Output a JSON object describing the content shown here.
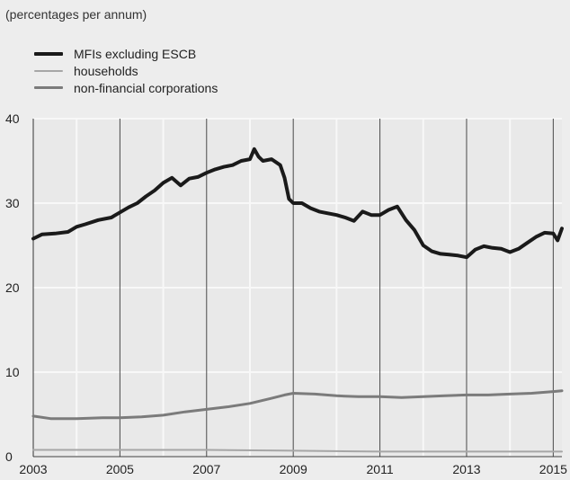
{
  "chart_data": {
    "type": "line",
    "subtitle": "(percentages per annum)",
    "title": "",
    "xlabel": "",
    "ylabel": "",
    "xlim": [
      2003.0,
      2015.2
    ],
    "ylim": [
      0,
      40
    ],
    "x_ticks": [
      "2003",
      "2005",
      "2007",
      "2009",
      "2011",
      "2013",
      "2015"
    ],
    "y_ticks": [
      "0",
      "10",
      "20",
      "30",
      "40"
    ],
    "grid": true,
    "legend_position": "top-left",
    "series": [
      {
        "name": "MFIs excluding ESCB",
        "color": "#1a1a1a",
        "x": [
          2003.0,
          2003.2,
          2003.5,
          2003.8,
          2004.0,
          2004.2,
          2004.5,
          2004.8,
          2005.0,
          2005.2,
          2005.4,
          2005.6,
          2005.8,
          2006.0,
          2006.2,
          2006.4,
          2006.6,
          2006.8,
          2007.0,
          2007.2,
          2007.4,
          2007.6,
          2007.8,
          2008.0,
          2008.1,
          2008.2,
          2008.3,
          2008.5,
          2008.7,
          2008.8,
          2008.9,
          2009.0,
          2009.2,
          2009.4,
          2009.6,
          2009.8,
          2010.0,
          2010.2,
          2010.4,
          2010.6,
          2010.8,
          2011.0,
          2011.2,
          2011.4,
          2011.6,
          2011.8,
          2012.0,
          2012.2,
          2012.4,
          2012.6,
          2012.8,
          2013.0,
          2013.2,
          2013.4,
          2013.6,
          2013.8,
          2014.0,
          2014.2,
          2014.4,
          2014.6,
          2014.8,
          2015.0,
          2015.1,
          2015.2
        ],
        "y": [
          25.8,
          26.3,
          26.4,
          26.6,
          27.2,
          27.5,
          28.0,
          28.3,
          28.9,
          29.5,
          30.0,
          30.8,
          31.5,
          32.4,
          33.0,
          32.1,
          32.9,
          33.1,
          33.6,
          34.0,
          34.3,
          34.5,
          35.0,
          35.2,
          36.4,
          35.5,
          35.0,
          35.2,
          34.5,
          33.0,
          30.5,
          30.0,
          30.0,
          29.4,
          29.0,
          28.8,
          28.6,
          28.3,
          27.9,
          29.0,
          28.6,
          28.6,
          29.2,
          29.6,
          28.0,
          26.8,
          25.0,
          24.3,
          24.0,
          23.9,
          23.8,
          23.6,
          24.5,
          24.9,
          24.7,
          24.6,
          24.2,
          24.6,
          25.3,
          26.0,
          26.5,
          26.4,
          25.6,
          27.0
        ]
      },
      {
        "name": "households",
        "color": "#a6a6a6",
        "x": [
          2003.0,
          2005.0,
          2007.0,
          2009.0,
          2011.0,
          2013.0,
          2015.2
        ],
        "y": [
          0.8,
          0.8,
          0.8,
          0.7,
          0.6,
          0.6,
          0.6
        ]
      },
      {
        "name": "non-financial corporations",
        "color": "#7b7b7b",
        "x": [
          2003.0,
          2003.4,
          2004.0,
          2004.6,
          2005.0,
          2005.5,
          2006.0,
          2006.5,
          2007.0,
          2007.5,
          2008.0,
          2008.5,
          2008.8,
          2009.0,
          2009.5,
          2010.0,
          2010.5,
          2011.0,
          2011.5,
          2012.0,
          2012.5,
          2013.0,
          2013.5,
          2014.0,
          2014.5,
          2015.0,
          2015.2
        ],
        "y": [
          4.8,
          4.5,
          4.5,
          4.6,
          4.6,
          4.7,
          4.9,
          5.3,
          5.6,
          5.9,
          6.3,
          6.9,
          7.3,
          7.5,
          7.4,
          7.2,
          7.1,
          7.1,
          7.0,
          7.1,
          7.2,
          7.3,
          7.3,
          7.4,
          7.5,
          7.7,
          7.8
        ]
      }
    ]
  }
}
